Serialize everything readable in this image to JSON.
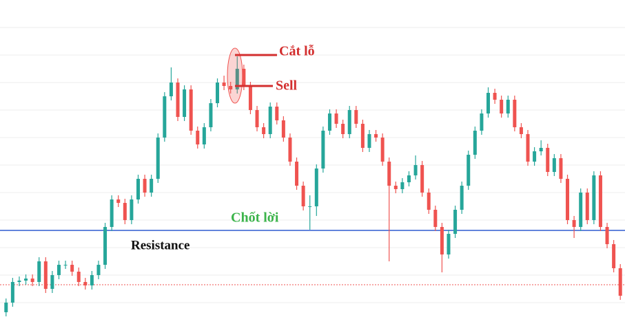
{
  "chart_data": {
    "type": "candlestick",
    "open": [
      20,
      34,
      64,
      66,
      69,
      64,
      94,
      54,
      74,
      89,
      89,
      79,
      64,
      59,
      74,
      89,
      144,
      184,
      179,
      154,
      184,
      214,
      194,
      214,
      274,
      334,
      354,
      304,
      344,
      284,
      264,
      289,
      324,
      354,
      349,
      344,
      374,
      349,
      314,
      289,
      279,
      319,
      299,
      274,
      239,
      204,
      174,
      174,
      229,
      284,
      309,
      294,
      279,
      314,
      294,
      259,
      279,
      274,
      239,
      204,
      199,
      209,
      219,
      234,
      194,
      169,
      144,
      104,
      134,
      169,
      204,
      249,
      284,
      309,
      339,
      329,
      309,
      329,
      289,
      279,
      239,
      254,
      259,
      224,
      244,
      214,
      154,
      144,
      194,
      154,
      219,
      144,
      119,
      84
    ],
    "high": [
      40,
      70,
      72,
      75,
      75,
      100,
      100,
      80,
      95,
      95,
      95,
      85,
      70,
      80,
      95,
      150,
      190,
      190,
      185,
      190,
      220,
      220,
      220,
      280,
      340,
      376,
      360,
      350,
      350,
      290,
      295,
      330,
      360,
      364,
      355,
      392,
      380,
      355,
      320,
      295,
      325,
      325,
      305,
      280,
      245,
      210,
      190,
      235,
      290,
      315,
      315,
      300,
      320,
      320,
      300,
      285,
      285,
      280,
      245,
      210,
      215,
      225,
      248,
      240,
      200,
      175,
      150,
      140,
      175,
      210,
      255,
      290,
      315,
      347,
      345,
      335,
      335,
      335,
      295,
      285,
      260,
      270,
      265,
      250,
      250,
      220,
      160,
      200,
      200,
      225,
      225,
      150,
      125,
      90
    ],
    "low": [
      14,
      28,
      58,
      60,
      58,
      58,
      48,
      48,
      68,
      83,
      73,
      58,
      53,
      53,
      68,
      83,
      138,
      173,
      148,
      148,
      178,
      188,
      188,
      208,
      268,
      328,
      298,
      298,
      278,
      258,
      258,
      283,
      318,
      343,
      338,
      338,
      343,
      308,
      283,
      273,
      273,
      293,
      268,
      233,
      198,
      168,
      140,
      160,
      223,
      278,
      288,
      273,
      273,
      288,
      253,
      253,
      268,
      233,
      94,
      193,
      193,
      203,
      213,
      188,
      163,
      138,
      78,
      98,
      128,
      163,
      198,
      243,
      278,
      303,
      323,
      303,
      303,
      283,
      273,
      233,
      233,
      248,
      218,
      218,
      208,
      148,
      128,
      138,
      148,
      148,
      138,
      113,
      78,
      38
    ],
    "close": [
      34,
      64,
      66,
      69,
      64,
      94,
      54,
      74,
      89,
      89,
      79,
      64,
      59,
      74,
      89,
      144,
      184,
      179,
      154,
      184,
      214,
      194,
      214,
      274,
      334,
      354,
      304,
      344,
      284,
      264,
      289,
      324,
      354,
      349,
      344,
      374,
      349,
      314,
      289,
      279,
      319,
      299,
      274,
      239,
      204,
      174,
      174,
      229,
      284,
      309,
      294,
      279,
      314,
      294,
      259,
      279,
      274,
      239,
      204,
      199,
      209,
      219,
      234,
      194,
      169,
      144,
      104,
      134,
      169,
      204,
      249,
      284,
      309,
      339,
      329,
      309,
      329,
      289,
      279,
      239,
      254,
      259,
      224,
      244,
      214,
      154,
      144,
      194,
      154,
      219,
      144,
      119,
      84,
      44
    ],
    "up_color": "#26a69a",
    "down_color": "#ef5350",
    "ylim": [
      0,
      474
    ],
    "yticks": [
      34,
      74,
      114,
      154,
      194,
      234,
      274,
      314,
      354,
      394,
      434
    ],
    "grid": true,
    "lines": [
      {
        "value": 139,
        "color": "#2f5bd0",
        "style": "solid"
      },
      {
        "value": 60,
        "color": "#ef5350",
        "style": "dotted"
      }
    ],
    "annotations": {
      "stop_loss": "Cắt lỗ",
      "sell": "Sell",
      "take_profit": "Chốt lời",
      "resistance": "Resistance"
    }
  }
}
